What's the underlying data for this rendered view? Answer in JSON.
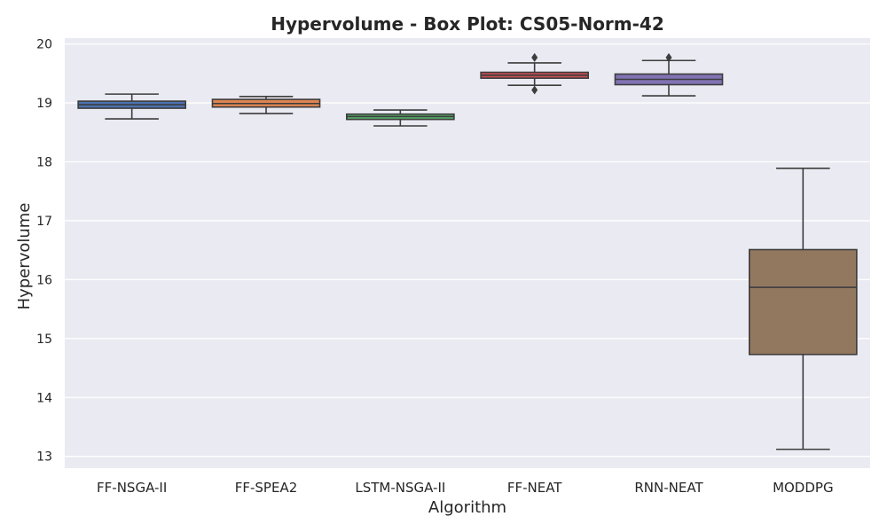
{
  "chart_data": {
    "type": "box",
    "title": "Hypervolume - Box Plot: CS05-Norm-42",
    "xlabel": "Algorithm",
    "ylabel": "Hypervolume",
    "ylim": [
      12.8,
      20.1
    ],
    "yticks": [
      13,
      14,
      15,
      16,
      17,
      18,
      19,
      20
    ],
    "grid": true,
    "background": "#eaeaf2",
    "grid_color": "#ffffff",
    "line_color": "#3d3d3d",
    "categories": [
      "FF-NSGA-II",
      "FF-SPEA2",
      "LSTM-NSGA-II",
      "FF-NEAT",
      "RNN-NEAT",
      "MODDPG"
    ],
    "boxes": [
      {
        "category": "FF-NSGA-II",
        "color": "#4c72b0",
        "whisker_low": 18.73,
        "q1": 18.91,
        "median": 18.97,
        "q3": 19.03,
        "whisker_high": 19.15,
        "outliers": []
      },
      {
        "category": "FF-SPEA2",
        "color": "#dd8452",
        "whisker_low": 18.82,
        "q1": 18.93,
        "median": 18.99,
        "q3": 19.06,
        "whisker_high": 19.11,
        "outliers": []
      },
      {
        "category": "LSTM-NSGA-II",
        "color": "#55a868",
        "whisker_low": 18.61,
        "q1": 18.72,
        "median": 18.77,
        "q3": 18.81,
        "whisker_high": 18.88,
        "outliers": []
      },
      {
        "category": "FF-NEAT",
        "color": "#c44e52",
        "whisker_low": 19.3,
        "q1": 19.42,
        "median": 19.47,
        "q3": 19.52,
        "whisker_high": 19.68,
        "outliers": [
          19.77,
          19.22
        ]
      },
      {
        "category": "RNN-NEAT",
        "color": "#8172b3",
        "whisker_low": 19.12,
        "q1": 19.31,
        "median": 19.4,
        "q3": 19.49,
        "whisker_high": 19.72,
        "outliers": [
          19.77
        ]
      },
      {
        "category": "MODDPG",
        "color": "#937860",
        "whisker_low": 13.12,
        "q1": 14.73,
        "median": 15.87,
        "q3": 16.51,
        "whisker_high": 17.89,
        "outliers": []
      }
    ]
  }
}
